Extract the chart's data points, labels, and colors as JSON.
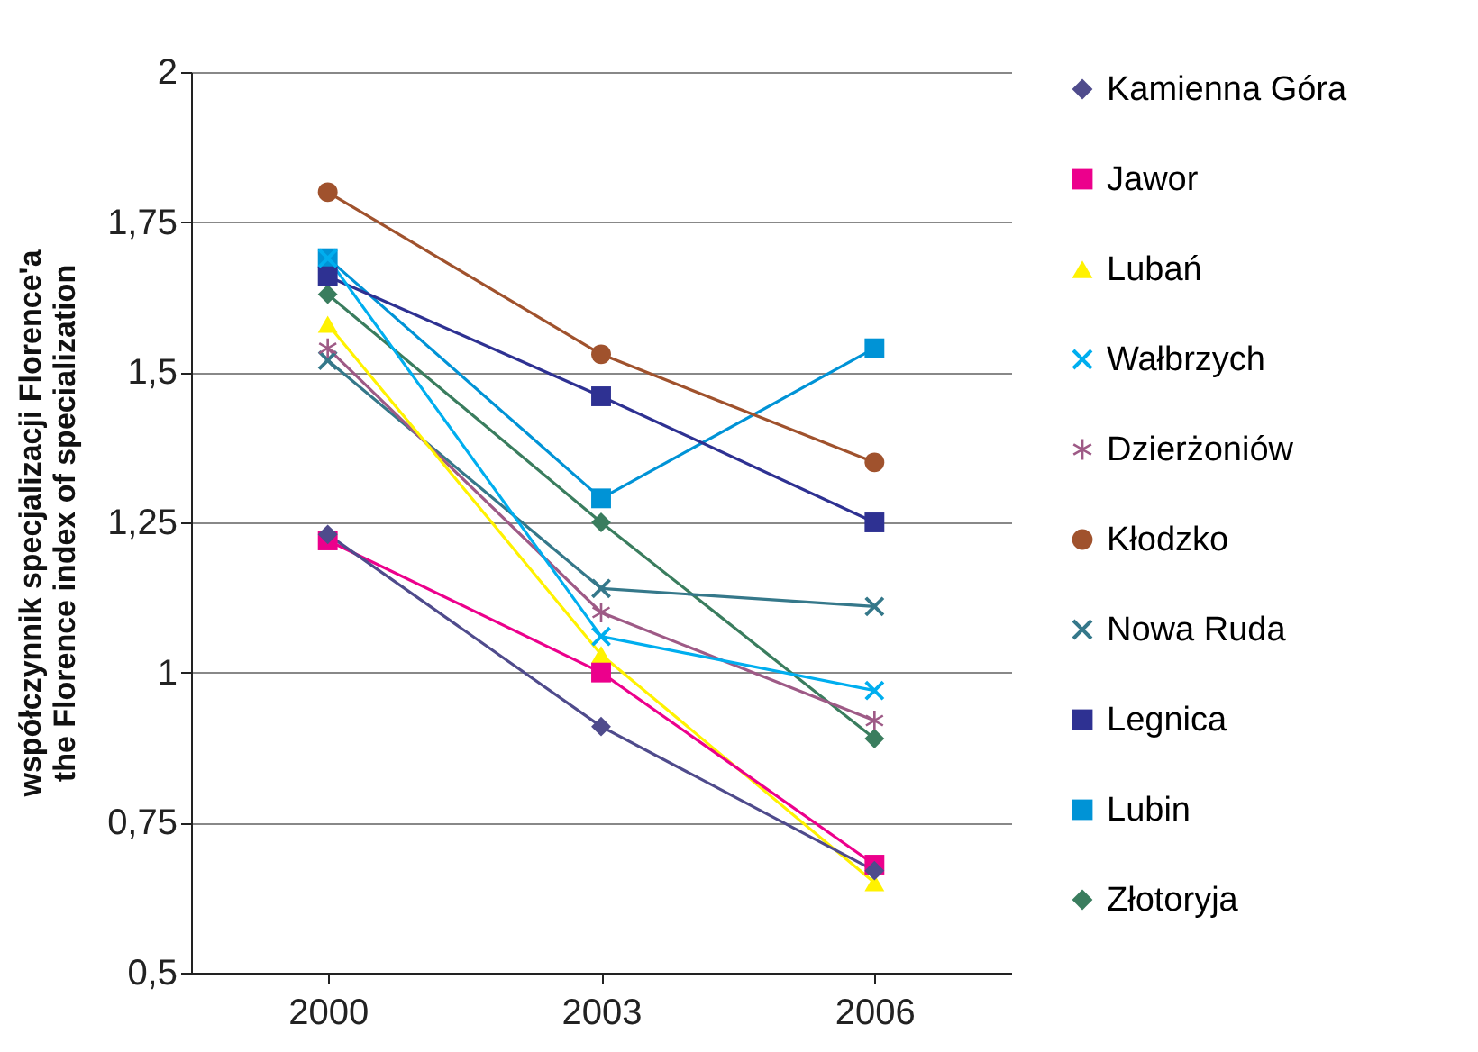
{
  "chart_data": {
    "type": "line",
    "ylabel": "współczynnik specjalizacji Florence'a\nthe Florence index of specialization",
    "categories": [
      "2000",
      "2003",
      "2006"
    ],
    "ylim": [
      0.5,
      2
    ],
    "yticks": [
      {
        "value": 0.5,
        "label": "0,5"
      },
      {
        "value": 0.75,
        "label": "0,75"
      },
      {
        "value": 1,
        "label": "1"
      },
      {
        "value": 1.25,
        "label": "1,25"
      },
      {
        "value": 1.5,
        "label": "1,5"
      },
      {
        "value": 1.75,
        "label": "1,75"
      },
      {
        "value": 2,
        "label": "2"
      }
    ],
    "grid": "y",
    "legend": "right",
    "series": [
      {
        "name": "Kamienna Góra",
        "color": "#4f4b8c",
        "marker": "diamond",
        "values": [
          1.23,
          0.91,
          0.67
        ]
      },
      {
        "name": "Jawor",
        "color": "#ec008c",
        "marker": "square",
        "values": [
          1.22,
          1.0,
          0.68
        ]
      },
      {
        "name": "Lubań",
        "color": "#fff200",
        "marker": "triangle",
        "values": [
          1.58,
          1.03,
          0.65
        ]
      },
      {
        "name": "Wałbrzych",
        "color": "#00aeef",
        "marker": "cross",
        "values": [
          1.69,
          1.06,
          0.97
        ]
      },
      {
        "name": "Dzierżoniów",
        "color": "#9e5a86",
        "marker": "star",
        "values": [
          1.54,
          1.1,
          0.92
        ]
      },
      {
        "name": "Kłodzko",
        "color": "#a0522d",
        "marker": "circle",
        "values": [
          1.8,
          1.53,
          1.35
        ]
      },
      {
        "name": "Nowa Ruda",
        "color": "#35788a",
        "marker": "cross",
        "values": [
          1.52,
          1.14,
          1.11
        ]
      },
      {
        "name": "Legnica",
        "color": "#2e3192",
        "marker": "square",
        "values": [
          1.66,
          1.46,
          1.25
        ]
      },
      {
        "name": "Lubin",
        "color": "#0093d6",
        "marker": "square",
        "values": [
          1.69,
          1.29,
          1.54
        ]
      },
      {
        "name": "Złotoryja",
        "color": "#3a7d5e",
        "marker": "diamond",
        "values": [
          1.63,
          1.25,
          0.89
        ]
      }
    ]
  }
}
